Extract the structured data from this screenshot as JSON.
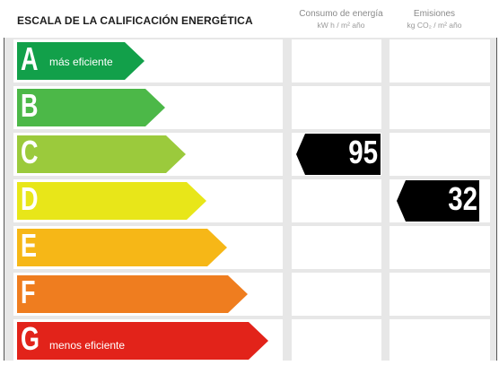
{
  "header": {
    "title": "ESCALA DE LA CALIFICACIÓN ENERGÉTICA",
    "consumo_label": "Consumo de energía",
    "consumo_unit": "kW h / m² año",
    "emisiones_label": "Emisiones",
    "emisiones_unit": "kg CO₂ / m² año"
  },
  "rating_rows": [
    {
      "letter": "A",
      "description": "más eficiente",
      "color": "#12a04a"
    },
    {
      "letter": "B",
      "description": "",
      "color": "#4cb848"
    },
    {
      "letter": "C",
      "description": "",
      "color": "#9bca3c"
    },
    {
      "letter": "D",
      "description": "",
      "color": "#e8e619"
    },
    {
      "letter": "E",
      "description": "",
      "color": "#f6b717"
    },
    {
      "letter": "F",
      "description": "",
      "color": "#ef7d1f"
    },
    {
      "letter": "G",
      "description": "menos eficiente",
      "color": "#e2231a"
    }
  ],
  "consumo": {
    "value": "95",
    "row_letter": "C"
  },
  "emisiones": {
    "value": "32",
    "row_letter": "D"
  }
}
